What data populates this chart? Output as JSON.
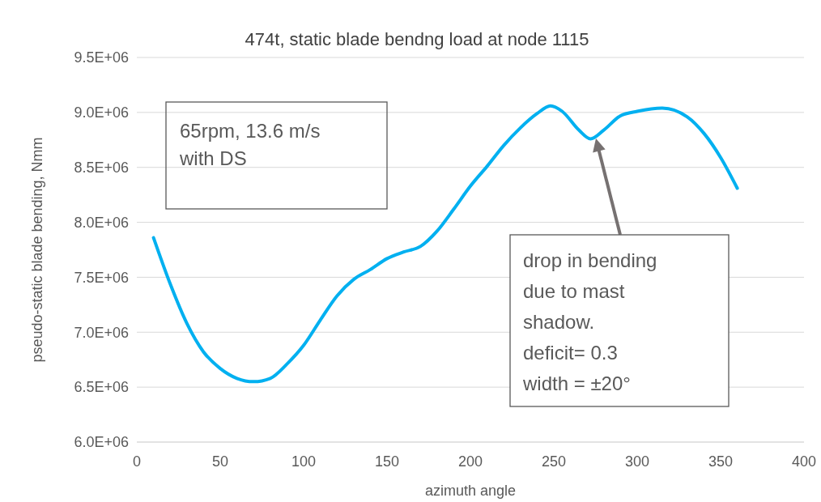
{
  "chart_data": {
    "type": "line",
    "title": "474t, static blade bendng load at node 1115",
    "xlabel": "azimuth angle",
    "ylabel": "pseudo-static blade bending, Nmm",
    "x": [
      10,
      20,
      30,
      40,
      50,
      60,
      70,
      80,
      90,
      100,
      110,
      120,
      130,
      140,
      150,
      160,
      170,
      180,
      190,
      200,
      210,
      220,
      230,
      240,
      248,
      255,
      265,
      272,
      280,
      290,
      300,
      315,
      330,
      340,
      350,
      360
    ],
    "series": [
      {
        "color": "#00b0f0",
        "values": [
          7860000,
          7440000,
          7080000,
          6820000,
          6670000,
          6580000,
          6550000,
          6580000,
          6710000,
          6880000,
          7110000,
          7330000,
          7480000,
          7570000,
          7670000,
          7730000,
          7780000,
          7920000,
          8120000,
          8330000,
          8510000,
          8700000,
          8860000,
          8990000,
          9060000,
          9010000,
          8840000,
          8760000,
          8840000,
          8970000,
          9010000,
          9040000,
          8960000,
          8810000,
          8590000,
          8310000
        ]
      }
    ],
    "xlim": [
      0,
      400
    ],
    "xticks": [
      0,
      50,
      100,
      150,
      200,
      250,
      300,
      350,
      400
    ],
    "ylim": [
      6000000,
      9500000
    ],
    "yticks": [
      {
        "value": 6000000,
        "label": "6.0E+06"
      },
      {
        "value": 6500000,
        "label": "6.5E+06"
      },
      {
        "value": 7000000,
        "label": "7.0E+06"
      },
      {
        "value": 7500000,
        "label": "7.5E+06"
      },
      {
        "value": 8000000,
        "label": "8.0E+06"
      },
      {
        "value": 8500000,
        "label": "8.5E+06"
      },
      {
        "value": 9000000,
        "label": "9.0E+06"
      },
      {
        "value": 9500000,
        "label": "9.5E+06"
      }
    ],
    "grid": true,
    "marker": "none",
    "line_style": "solid",
    "annotations": [
      "65rpm, 13.6 m/s\nwith DS",
      "drop in bending\ndue to mast\nshadow.\ndeficit= 0.3\nwidth = ±20°"
    ]
  }
}
